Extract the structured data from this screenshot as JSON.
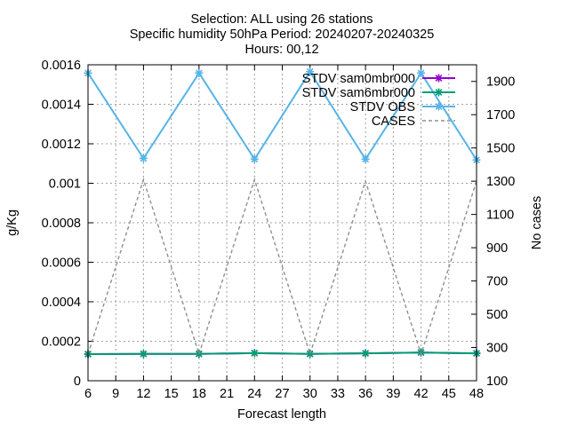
{
  "chart_data": {
    "type": "line",
    "title_lines": [
      "Selection: ALL using    26 stations",
      "Specific humidity 50hPa   Period: 20240207-20240325",
      "Hours: 00,12"
    ],
    "xlabel": "Forecast length",
    "ylabel": "g/Kg",
    "y2label": "No cases",
    "x": [
      6,
      12,
      18,
      24,
      30,
      36,
      42,
      48
    ],
    "xlim": [
      6,
      48
    ],
    "xticks": [
      "6",
      "9",
      "12",
      "15",
      "18",
      "21",
      "24",
      "27",
      "30",
      "33",
      "36",
      "39",
      "42",
      "45",
      "48"
    ],
    "ylim": [
      0,
      0.0016
    ],
    "yticks": [
      "0",
      "0.0002",
      "0.0004",
      "0.0006",
      "0.0008",
      "0.001",
      "0.0012",
      "0.0014",
      "0.0016"
    ],
    "y2lim": [
      100,
      2000
    ],
    "y2ticks": [
      "100",
      "300",
      "500",
      "700",
      "900",
      "1100",
      "1300",
      "1500",
      "1700",
      "1900"
    ],
    "grid": true,
    "legend_position": "top-right",
    "series": [
      {
        "name": "STDV sam0mbr000",
        "axis": "y",
        "color": "#9400d3",
        "marker": "star",
        "values": [
          0.000135,
          0.000136,
          0.000136,
          0.00014,
          0.000136,
          0.000139,
          0.000143,
          0.000139
        ]
      },
      {
        "name": "STDV sam6mbr000",
        "axis": "y",
        "color": "#009e73",
        "marker": "star",
        "values": [
          0.000135,
          0.000136,
          0.000136,
          0.00014,
          0.000136,
          0.000139,
          0.000143,
          0.000139
        ]
      },
      {
        "name": "STDV OBS",
        "axis": "y",
        "color": "#56b4e9",
        "marker": "star",
        "values": [
          0.001558,
          0.001126,
          0.001558,
          0.001122,
          0.001565,
          0.001122,
          0.001558,
          0.001118
        ]
      },
      {
        "name": "CASES",
        "axis": "y2",
        "color": "#909090",
        "marker": "none",
        "dash": true,
        "values": [
          260,
          1310,
          260,
          1310,
          260,
          1300,
          260,
          1300
        ]
      }
    ]
  }
}
